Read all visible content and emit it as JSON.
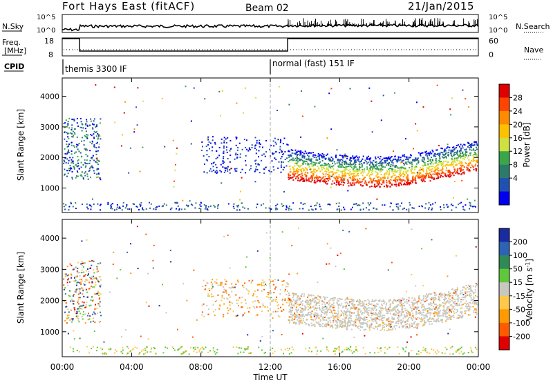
{
  "header": {
    "title": "Fort Hays East (fitACF)",
    "beam": "Beam 02",
    "date": "21/Jan/2015"
  },
  "chart_data": [
    {
      "type": "line",
      "name": "noise-panel",
      "left_label": "N.Sky",
      "right_label": "N.Search",
      "y_ticks_left": [
        "10^5",
        "10^0"
      ],
      "y_ticks_right": [
        "10^5",
        "10^0"
      ]
    },
    {
      "type": "line",
      "name": "frequency-panel",
      "left_label_line1": "Freq.",
      "left_label_line2": "[MHz]",
      "right_label": "Nave",
      "y_ticks_left": [
        "18",
        "8"
      ],
      "y_ticks_right": [
        "60",
        "0"
      ],
      "freq_segments": [
        {
          "x0": 0.0,
          "x1": 1.0,
          "value": 18
        },
        {
          "x0": 1.0,
          "x1": 13.0,
          "value": 10.5
        },
        {
          "x0": 13.0,
          "x1": 24.0,
          "value": 18
        }
      ],
      "ylim": [
        8,
        18
      ]
    },
    {
      "type": "table",
      "name": "cpid-row",
      "label": "CPID",
      "entries": [
        {
          "start": 0.0,
          "text": "themis 3300 IF"
        },
        {
          "start": 12.0,
          "text": "normal (fast) 151 IF"
        }
      ]
    },
    {
      "type": "heatmap",
      "name": "power-panel",
      "ylabel": "Slant Range [km]",
      "y_ticks": [
        1000,
        2000,
        3000,
        4000
      ],
      "ylim": [
        200,
        4600
      ],
      "xlim": [
        0,
        24
      ],
      "colorbar": {
        "label": "Power [dB]",
        "ticks": [
          "28",
          "24",
          "20",
          "16",
          "12",
          "8",
          "4"
        ],
        "colors": [
          "#e00000",
          "#ff4400",
          "#ff8c00",
          "#ffc000",
          "#cfe040",
          "#3aa64a",
          "#2d7a6b",
          "#2050b0",
          "#0000f0"
        ]
      }
    },
    {
      "type": "heatmap",
      "name": "velocity-panel",
      "ylabel": "Slant Range [km]",
      "y_ticks": [
        1000,
        2000,
        3000,
        4000
      ],
      "ylim": [
        200,
        4600
      ],
      "xlim": [
        0,
        24
      ],
      "colorbar": {
        "label": "Velocity",
        "units": "[m s",
        "units_sup": "-1",
        "units_end": "]",
        "ticks": [
          "200",
          "100",
          "50",
          "15",
          "-15",
          "-50",
          "-100",
          "-200"
        ],
        "colors": [
          "#1a2aa0",
          "#2e62b5",
          "#2f8a55",
          "#5fc83a",
          "#c8c8c0",
          "#ffc84a",
          "#ff9a00",
          "#ff5a00",
          "#e00000"
        ]
      }
    },
    {
      "type": "axis",
      "name": "time-axis",
      "xlabel": "Time UT",
      "tick_labels": [
        "00:00",
        "04:00",
        "08:00",
        "12:00",
        "16:00",
        "20:00",
        "00:00"
      ],
      "tick_hours": [
        0,
        4,
        8,
        12,
        16,
        20,
        24
      ]
    }
  ]
}
